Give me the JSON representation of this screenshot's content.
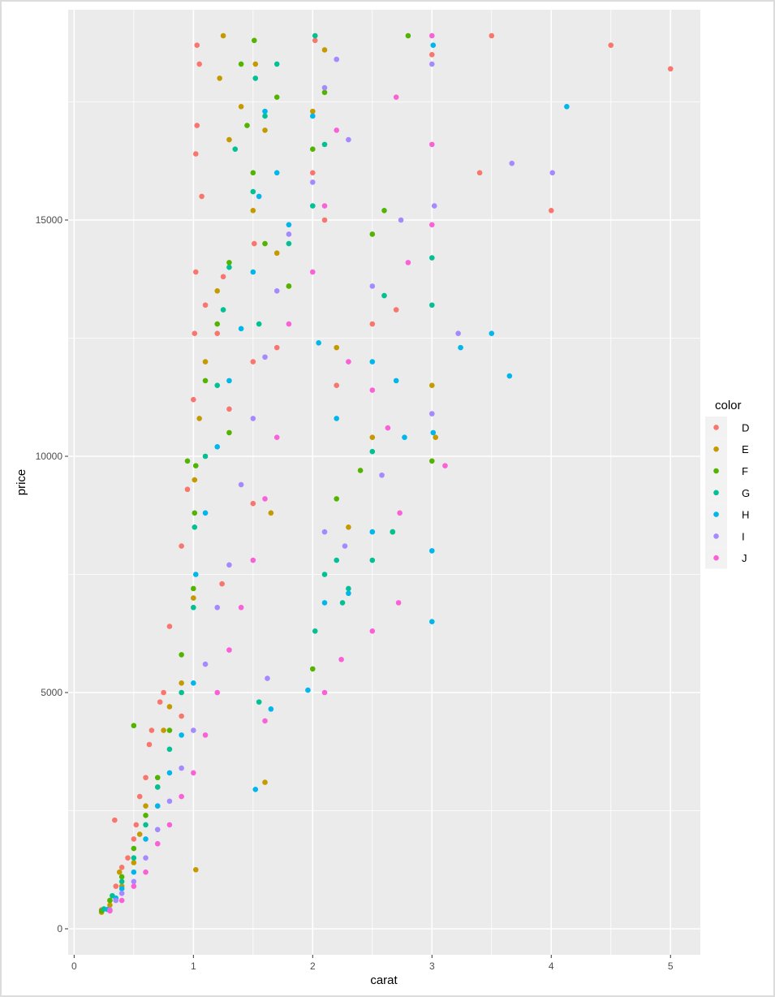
{
  "chart_data": {
    "type": "scatter",
    "title": "",
    "xlabel": "carat",
    "ylabel": "price",
    "xlim": [
      -0.05,
      5.25
    ],
    "ylim": [
      -550,
      19450
    ],
    "x_ticks": [
      0,
      1,
      2,
      3,
      4,
      5
    ],
    "x_tick_labels": [
      "0",
      "1",
      "2",
      "3",
      "4",
      "5"
    ],
    "y_ticks": [
      0,
      5000,
      10000,
      15000
    ],
    "y_tick_labels": [
      "0",
      "5000",
      "10000",
      "15000"
    ],
    "grid": true,
    "background": "#ebebeb",
    "grid_color": "#ffffff",
    "legend": {
      "title": "color",
      "position": "right",
      "entries": [
        {
          "label": "D",
          "color": "#F8766D"
        },
        {
          "label": "E",
          "color": "#C49A00"
        },
        {
          "label": "F",
          "color": "#53B400"
        },
        {
          "label": "G",
          "color": "#00C094"
        },
        {
          "label": "H",
          "color": "#00B6EB"
        },
        {
          "label": "I",
          "color": "#A58AFF"
        },
        {
          "label": "J",
          "color": "#FB61D7"
        }
      ]
    },
    "series": [
      {
        "name": "D",
        "points": [
          [
            0.23,
            400
          ],
          [
            0.3,
            600
          ],
          [
            0.35,
            900
          ],
          [
            0.4,
            1300
          ],
          [
            0.45,
            1500
          ],
          [
            0.5,
            1900
          ],
          [
            0.52,
            2200
          ],
          [
            0.55,
            2800
          ],
          [
            0.6,
            3200
          ],
          [
            0.63,
            3900
          ],
          [
            0.65,
            4200
          ],
          [
            0.7,
            2600
          ],
          [
            0.72,
            4800
          ],
          [
            0.75,
            5000
          ],
          [
            0.8,
            6400
          ],
          [
            0.9,
            8100
          ],
          [
            0.95,
            9300
          ],
          [
            1.0,
            11200
          ],
          [
            1.01,
            12600
          ],
          [
            1.02,
            13900
          ],
          [
            1.02,
            16400
          ],
          [
            1.03,
            17000
          ],
          [
            1.03,
            18700
          ],
          [
            1.05,
            18300
          ],
          [
            1.07,
            15500
          ],
          [
            1.1,
            13200
          ],
          [
            1.2,
            12600
          ],
          [
            1.25,
            13800
          ],
          [
            1.3,
            11000
          ],
          [
            1.5,
            12000
          ],
          [
            1.51,
            14500
          ],
          [
            1.7,
            12300
          ],
          [
            2.0,
            16000
          ],
          [
            2.1,
            15000
          ],
          [
            2.2,
            11500
          ],
          [
            2.5,
            12800
          ],
          [
            2.7,
            13100
          ],
          [
            3.0,
            18500
          ],
          [
            3.4,
            16000
          ],
          [
            4.5,
            18700
          ],
          [
            5.0,
            18200
          ],
          [
            4.0,
            15200
          ],
          [
            3.5,
            18900
          ],
          [
            1.24,
            7300
          ],
          [
            0.34,
            2300
          ],
          [
            0.9,
            4500
          ],
          [
            1.5,
            9000
          ],
          [
            2.02,
            18800
          ]
        ]
      },
      {
        "name": "E",
        "points": [
          [
            0.23,
            350
          ],
          [
            0.3,
            500
          ],
          [
            0.4,
            900
          ],
          [
            0.5,
            1400
          ],
          [
            0.55,
            2000
          ],
          [
            0.6,
            2600
          ],
          [
            0.7,
            3000
          ],
          [
            0.75,
            4200
          ],
          [
            0.8,
            4700
          ],
          [
            0.9,
            5200
          ],
          [
            1.0,
            7000
          ],
          [
            1.01,
            9500
          ],
          [
            1.05,
            10800
          ],
          [
            1.1,
            12000
          ],
          [
            1.2,
            13500
          ],
          [
            1.22,
            18000
          ],
          [
            1.3,
            16700
          ],
          [
            1.4,
            17400
          ],
          [
            1.5,
            15200
          ],
          [
            1.52,
            18300
          ],
          [
            1.6,
            16900
          ],
          [
            1.7,
            14300
          ],
          [
            1.8,
            13600
          ],
          [
            2.0,
            17300
          ],
          [
            2.1,
            18600
          ],
          [
            2.2,
            12300
          ],
          [
            2.5,
            10400
          ],
          [
            3.0,
            11500
          ],
          [
            3.03,
            10400
          ],
          [
            1.02,
            1250
          ],
          [
            1.25,
            18900
          ],
          [
            0.38,
            1200
          ],
          [
            1.6,
            3100
          ],
          [
            2.3,
            8500
          ],
          [
            1.65,
            8800
          ]
        ]
      },
      {
        "name": "F",
        "points": [
          [
            0.23,
            380
          ],
          [
            0.3,
            600
          ],
          [
            0.4,
            1100
          ],
          [
            0.5,
            1700
          ],
          [
            0.5,
            4300
          ],
          [
            0.6,
            2400
          ],
          [
            0.7,
            3200
          ],
          [
            0.8,
            4200
          ],
          [
            0.9,
            5800
          ],
          [
            1.0,
            7200
          ],
          [
            1.01,
            8800
          ],
          [
            1.02,
            9800
          ],
          [
            1.1,
            11600
          ],
          [
            1.2,
            12800
          ],
          [
            1.3,
            14100
          ],
          [
            1.4,
            18300
          ],
          [
            1.45,
            17000
          ],
          [
            1.5,
            16000
          ],
          [
            1.51,
            18800
          ],
          [
            1.6,
            14500
          ],
          [
            1.7,
            17600
          ],
          [
            1.8,
            13600
          ],
          [
            2.0,
            16500
          ],
          [
            2.1,
            17700
          ],
          [
            2.2,
            9100
          ],
          [
            2.4,
            9700
          ],
          [
            2.5,
            14700
          ],
          [
            2.8,
            18900
          ],
          [
            3.0,
            9900
          ],
          [
            2.0,
            5500
          ],
          [
            2.67,
            8400
          ],
          [
            1.3,
            10500
          ],
          [
            0.95,
            9900
          ],
          [
            2.6,
            15200
          ]
        ]
      },
      {
        "name": "G",
        "points": [
          [
            0.25,
            420
          ],
          [
            0.32,
            700
          ],
          [
            0.4,
            1000
          ],
          [
            0.5,
            1500
          ],
          [
            0.6,
            2200
          ],
          [
            0.7,
            3000
          ],
          [
            0.8,
            3800
          ],
          [
            0.9,
            5000
          ],
          [
            1.0,
            6800
          ],
          [
            1.01,
            8500
          ],
          [
            1.1,
            10000
          ],
          [
            1.2,
            11500
          ],
          [
            1.25,
            13100
          ],
          [
            1.3,
            14000
          ],
          [
            1.35,
            16500
          ],
          [
            1.5,
            15600
          ],
          [
            1.52,
            18000
          ],
          [
            1.55,
            12800
          ],
          [
            1.6,
            17200
          ],
          [
            1.7,
            18300
          ],
          [
            1.8,
            14500
          ],
          [
            2.0,
            15300
          ],
          [
            2.02,
            18900
          ],
          [
            2.1,
            16600
          ],
          [
            2.2,
            7800
          ],
          [
            2.3,
            7200
          ],
          [
            2.5,
            10100
          ],
          [
            2.5,
            7800
          ],
          [
            2.6,
            13400
          ],
          [
            2.67,
            8400
          ],
          [
            3.0,
            14200
          ],
          [
            3.0,
            13200
          ],
          [
            2.02,
            6300
          ],
          [
            2.1,
            7500
          ],
          [
            2.25,
            6900
          ],
          [
            1.55,
            4800
          ]
        ]
      },
      {
        "name": "H",
        "points": [
          [
            0.28,
            410
          ],
          [
            0.35,
            650
          ],
          [
            0.4,
            850
          ],
          [
            0.5,
            1200
          ],
          [
            0.6,
            1900
          ],
          [
            0.7,
            2600
          ],
          [
            0.8,
            3300
          ],
          [
            0.9,
            4100
          ],
          [
            1.0,
            5200
          ],
          [
            1.02,
            7500
          ],
          [
            1.1,
            8800
          ],
          [
            1.2,
            10200
          ],
          [
            1.3,
            11600
          ],
          [
            1.4,
            12700
          ],
          [
            1.5,
            13900
          ],
          [
            1.52,
            2950
          ],
          [
            1.55,
            15500
          ],
          [
            1.6,
            17300
          ],
          [
            1.7,
            16000
          ],
          [
            1.8,
            14900
          ],
          [
            2.0,
            17200
          ],
          [
            2.05,
            12400
          ],
          [
            2.1,
            6900
          ],
          [
            2.2,
            10800
          ],
          [
            2.3,
            7100
          ],
          [
            2.5,
            8400
          ],
          [
            2.5,
            12000
          ],
          [
            2.7,
            11600
          ],
          [
            2.77,
            10400
          ],
          [
            3.0,
            8000
          ],
          [
            3.0,
            6500
          ],
          [
            3.01,
            10500
          ],
          [
            3.01,
            18700
          ],
          [
            3.24,
            12300
          ],
          [
            3.5,
            12600
          ],
          [
            3.65,
            11700
          ],
          [
            4.13,
            17400
          ],
          [
            1.65,
            4650
          ],
          [
            1.96,
            5050
          ]
        ]
      },
      {
        "name": "I",
        "points": [
          [
            0.3,
            400
          ],
          [
            0.35,
            600
          ],
          [
            0.4,
            750
          ],
          [
            0.5,
            1000
          ],
          [
            0.6,
            1500
          ],
          [
            0.7,
            2100
          ],
          [
            0.8,
            2700
          ],
          [
            0.9,
            3400
          ],
          [
            1.0,
            4200
          ],
          [
            1.1,
            5600
          ],
          [
            1.2,
            6800
          ],
          [
            1.3,
            7700
          ],
          [
            1.4,
            9400
          ],
          [
            1.5,
            10800
          ],
          [
            1.6,
            12100
          ],
          [
            1.7,
            13500
          ],
          [
            1.8,
            14700
          ],
          [
            2.0,
            15800
          ],
          [
            2.1,
            17800
          ],
          [
            2.2,
            18400
          ],
          [
            2.3,
            16700
          ],
          [
            2.5,
            13600
          ],
          [
            2.58,
            9600
          ],
          [
            2.74,
            15000
          ],
          [
            3.0,
            10900
          ],
          [
            3.0,
            18300
          ],
          [
            3.02,
            15300
          ],
          [
            3.22,
            12600
          ],
          [
            3.67,
            16200
          ],
          [
            4.01,
            16000
          ],
          [
            1.62,
            5300
          ],
          [
            2.1,
            8400
          ],
          [
            2.27,
            8100
          ]
        ]
      },
      {
        "name": "J",
        "points": [
          [
            0.3,
            380
          ],
          [
            0.4,
            600
          ],
          [
            0.5,
            900
          ],
          [
            0.6,
            1200
          ],
          [
            0.7,
            1800
          ],
          [
            0.8,
            2200
          ],
          [
            0.9,
            2800
          ],
          [
            1.0,
            3300
          ],
          [
            1.1,
            4100
          ],
          [
            1.2,
            5000
          ],
          [
            1.3,
            5900
          ],
          [
            1.4,
            6800
          ],
          [
            1.5,
            7800
          ],
          [
            1.6,
            9100
          ],
          [
            1.7,
            10400
          ],
          [
            1.8,
            12800
          ],
          [
            2.0,
            13900
          ],
          [
            2.1,
            15300
          ],
          [
            2.2,
            16900
          ],
          [
            2.3,
            12000
          ],
          [
            2.5,
            11400
          ],
          [
            2.5,
            6300
          ],
          [
            2.7,
            17600
          ],
          [
            2.72,
            6900
          ],
          [
            2.73,
            8800
          ],
          [
            2.8,
            14100
          ],
          [
            3.0,
            16600
          ],
          [
            3.0,
            14900
          ],
          [
            3.11,
            9800
          ],
          [
            3.0,
            18900
          ],
          [
            2.1,
            5000
          ],
          [
            2.24,
            5700
          ],
          [
            1.6,
            4400
          ],
          [
            2.63,
            10600
          ]
        ]
      }
    ]
  }
}
